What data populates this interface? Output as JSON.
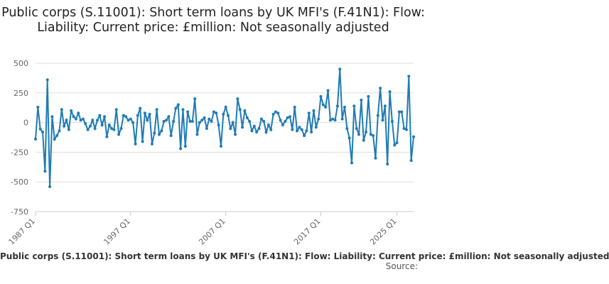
{
  "chart_data": {
    "type": "line",
    "title": "Public corps (S.11001): Short term loans by UK MFI's (F.41N1): Flow: Liability: Current price: £million: Not seasonally adjusted",
    "legend_label": "Public corps (S.11001): Short term loans by UK MFI's (F.41N1): Flow: Liability: Current price: £million: Not seasonally adjusted",
    "source_label": "Source:",
    "ylim": [
      -750,
      500
    ],
    "y_ticks": [
      "500",
      "250",
      "0",
      "-250",
      "-500",
      "-750"
    ],
    "y_tick_values": [
      500,
      250,
      0,
      -250,
      -500,
      -750
    ],
    "x_ticks": [
      "1987 Q1",
      "1997 Q1",
      "2007 Q1",
      "2017 Q1",
      "2025 Q1"
    ],
    "x_tick_index": [
      0,
      40,
      80,
      120,
      152
    ],
    "grid": true,
    "line_color": "#1f7bb6",
    "series": [
      {
        "values": [
          -140,
          130,
          -55,
          -80,
          -410,
          360,
          -540,
          50,
          -140,
          -110,
          -70,
          110,
          -30,
          20,
          -60,
          100,
          50,
          30,
          80,
          20,
          30,
          -10,
          -60,
          -30,
          20,
          -50,
          20,
          60,
          -20,
          50,
          -120,
          -20,
          -50,
          -60,
          110,
          -100,
          -50,
          60,
          50,
          20,
          30,
          0,
          -180,
          60,
          120,
          -160,
          80,
          20,
          70,
          -180,
          -90,
          110,
          -100,
          -70,
          10,
          20,
          50,
          -110,
          10,
          120,
          150,
          -220,
          110,
          -200,
          90,
          10,
          10,
          200,
          -100,
          0,
          20,
          40,
          -50,
          30,
          10,
          90,
          80,
          -20,
          -200,
          70,
          130,
          60,
          -50,
          0,
          -100,
          200,
          110,
          -40,
          100,
          40,
          10,
          -70,
          -30,
          -80,
          -50,
          30,
          10,
          -80,
          -20,
          -60,
          70,
          90,
          80,
          20,
          -20,
          10,
          40,
          50,
          -60,
          130,
          -70,
          -40,
          -60,
          -110,
          -70,
          80,
          -80,
          100,
          -40,
          30,
          220,
          150,
          130,
          270,
          20,
          30,
          20,
          140,
          450,
          30,
          130,
          -50,
          -130,
          -340,
          140,
          -50,
          -100,
          190,
          -150,
          -80,
          220,
          -100,
          -110,
          -300,
          60,
          290,
          20,
          140,
          -350,
          260,
          10,
          -190,
          -170,
          90,
          90,
          -50,
          -60,
          390,
          -320,
          -120
        ]
      }
    ]
  }
}
